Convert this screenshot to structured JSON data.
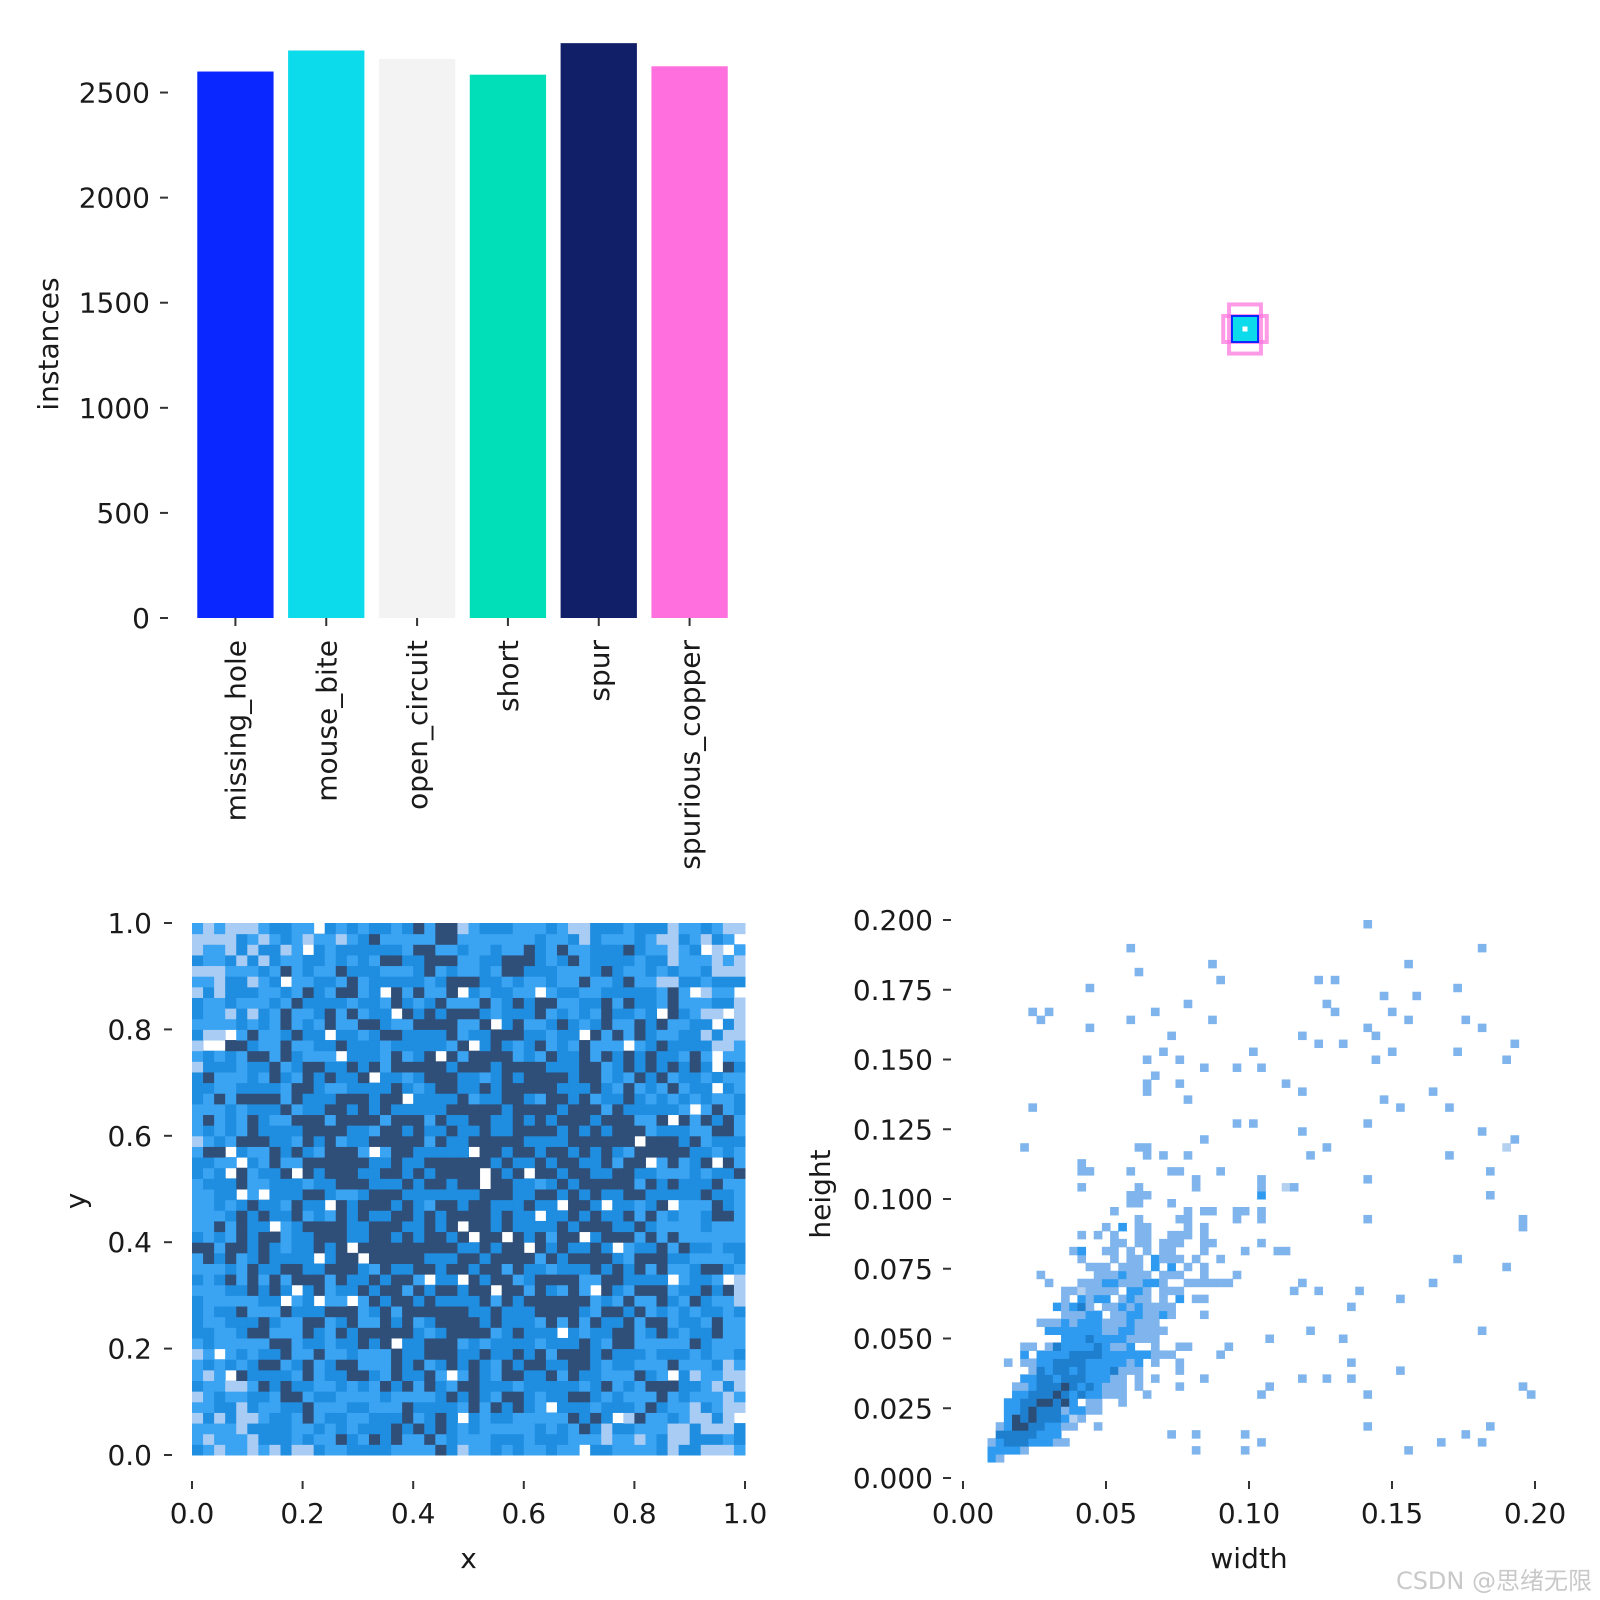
{
  "watermark": "CSDN @思绪无限",
  "chart_data": [
    {
      "type": "bar",
      "title": "",
      "xlabel": "",
      "ylabel": "instances",
      "categories": [
        "missing_hole",
        "mouse_bite",
        "open_circuit",
        "short",
        "spur",
        "spurious_copper"
      ],
      "values": [
        2600,
        2700,
        2660,
        2585,
        2735,
        2625
      ],
      "colors": [
        "#0a27ff",
        "#0bdbeb",
        "#f3f3f3",
        "#00dfb7",
        "#111f68",
        "#ff6fdd"
      ],
      "ylim": [
        0,
        2750
      ],
      "yticks": [
        0,
        500,
        1000,
        1500,
        2000,
        2500
      ],
      "ytick_labels": [
        "0",
        "500",
        "1000",
        "1500",
        "2000",
        "2500"
      ]
    },
    {
      "type": "boxes",
      "title": "",
      "description_values": {
        "center_x": 0.5,
        "center_y": 0.5,
        "typical_width": 0.05,
        "typical_height": 0.05
      },
      "colors": [
        "#ff6fdd",
        "#0bdbeb",
        "#0a27ff",
        "#111f68"
      ]
    },
    {
      "type": "heatmap",
      "xlabel": "x",
      "ylabel": "y",
      "xlim": [
        0.0,
        1.0
      ],
      "ylim": [
        0.0,
        1.0
      ],
      "xticks": [
        0.0,
        0.2,
        0.4,
        0.6,
        0.8,
        1.0
      ],
      "xtick_labels": [
        "0.0",
        "0.2",
        "0.4",
        "0.6",
        "0.8",
        "1.0"
      ],
      "yticks": [
        0.0,
        0.2,
        0.4,
        0.6,
        0.8,
        1.0
      ],
      "ytick_labels": [
        "0.0",
        "0.2",
        "0.4",
        "0.6",
        "0.8",
        "1.0"
      ],
      "bins": 50,
      "distribution": "roughly uniform over [0,1]x[0,1], denser toward center",
      "colors": [
        "#a9ccf4",
        "#3aa3f2",
        "#1f8de0",
        "#2f4f79"
      ]
    },
    {
      "type": "heatmap",
      "xlabel": "width",
      "ylabel": "height",
      "xlim": [
        0.0,
        0.2
      ],
      "ylim": [
        0.0,
        0.2
      ],
      "xticks": [
        0.0,
        0.05,
        0.1,
        0.15,
        0.2
      ],
      "xtick_labels": [
        "0.00",
        "0.05",
        "0.10",
        "0.15",
        "0.20"
      ],
      "yticks": [
        0.0,
        0.025,
        0.05,
        0.075,
        0.1,
        0.125,
        0.15,
        0.175,
        0.2
      ],
      "ytick_labels": [
        "0.000",
        "0.025",
        "0.050",
        "0.075",
        "0.100",
        "0.125",
        "0.150",
        "0.175",
        "0.200"
      ],
      "bins": 50,
      "distribution": "concentrated near width≈0.035, height≈0.035, spreading to width 0.2 and height 0.2",
      "colors": [
        "#b3d0f1",
        "#7fb5ec",
        "#2e9bf0",
        "#1f7fcf",
        "#2b4e78"
      ]
    }
  ]
}
